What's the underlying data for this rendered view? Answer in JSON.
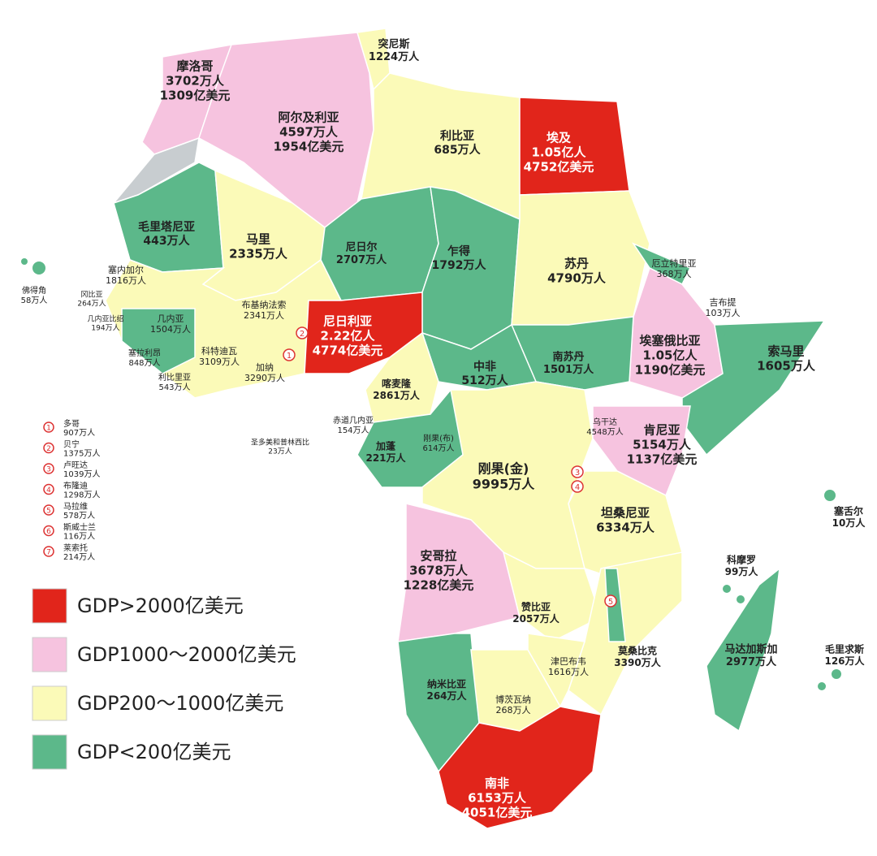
{
  "countries": [
    {
      "name": "摩洛哥",
      "population": "3702万人",
      "gdp": "1309亿美元"
    },
    {
      "name": "阿尔及利亚",
      "population": "4597万人",
      "gdp": "1954亿美元"
    },
    {
      "name": "突尼斯",
      "population": "1224万人"
    },
    {
      "name": "利比亚",
      "population": "685万人"
    },
    {
      "name": "埃及",
      "population": "1.05亿人",
      "gdp": "4752亿美元"
    },
    {
      "name": "毛里塔尼亚",
      "population": "443万人"
    },
    {
      "name": "马里",
      "population": "2335万人"
    },
    {
      "name": "尼日尔",
      "population": "2707万人"
    },
    {
      "name": "乍得",
      "population": "1792万人"
    },
    {
      "name": "苏丹",
      "population": "4790万人"
    },
    {
      "name": "厄立特里亚",
      "population": "368万人"
    },
    {
      "name": "吉布提",
      "population": "103万人"
    },
    {
      "name": "埃塞俄比亚",
      "population": "1.05亿人",
      "gdp": "1190亿美元"
    },
    {
      "name": "索马里",
      "population": "1605万人"
    },
    {
      "name": "塞内加尔",
      "population": "1816万人"
    },
    {
      "name": "佛得角",
      "population": "58万人"
    },
    {
      "name": "冈比亚",
      "population": "264万人"
    },
    {
      "name": "几内亚比绍",
      "population": "194万人"
    },
    {
      "name": "几内亚",
      "population": "1504万人"
    },
    {
      "name": "布基纳法索",
      "population": "2341万人"
    },
    {
      "name": "尼日利亚",
      "population": "2.22亿人",
      "gdp": "4774亿美元"
    },
    {
      "name": "塞拉利昂",
      "population": "848万人"
    },
    {
      "name": "科特迪瓦",
      "population": "3109万人"
    },
    {
      "name": "加纳",
      "population": "3290万人"
    },
    {
      "name": "利比里亚",
      "population": "543万人"
    },
    {
      "name": "喀麦隆",
      "population": "2861万人"
    },
    {
      "name": "中非",
      "population": "512万人"
    },
    {
      "name": "南苏丹",
      "population": "1501万人"
    },
    {
      "name": "赤道几内亚",
      "population": "154万人"
    },
    {
      "name": "圣多美和普林西比",
      "population": "23万人"
    },
    {
      "name": "加蓬",
      "population": "221万人"
    },
    {
      "name": "刚果(布)",
      "population": "614万人"
    },
    {
      "name": "乌干达",
      "population": "4548万人"
    },
    {
      "name": "肯尼亚",
      "population": "5154万人",
      "gdp": "1137亿美元"
    },
    {
      "name": "刚果(金)",
      "population": "9995万人"
    },
    {
      "name": "坦桑尼亚",
      "population": "6334万人"
    },
    {
      "name": "塞舌尔",
      "population": "10万人"
    },
    {
      "name": "科摩罗",
      "population": "99万人"
    },
    {
      "name": "安哥拉",
      "population": "3678万人",
      "gdp": "1228亿美元"
    },
    {
      "name": "赞比亚",
      "population": "2057万人"
    },
    {
      "name": "马达加斯加",
      "population": "2977万人"
    },
    {
      "name": "毛里求斯",
      "population": "126万人"
    },
    {
      "name": "莫桑比克",
      "population": "3390万人"
    },
    {
      "name": "津巴布韦",
      "population": "1616万人"
    },
    {
      "name": "纳米比亚",
      "population": "264万人"
    },
    {
      "name": "博茨瓦纳",
      "population": "268万人"
    },
    {
      "name": "南非",
      "population": "6153万人",
      "gdp": "4051亿美元"
    }
  ],
  "footnotes": [
    {
      "marker": "1",
      "name": "多哥",
      "population": "907万人"
    },
    {
      "marker": "2",
      "name": "贝宁",
      "population": "1375万人"
    },
    {
      "marker": "3",
      "name": "卢旺达",
      "population": "1039万人"
    },
    {
      "marker": "4",
      "name": "布隆迪",
      "population": "1298万人"
    },
    {
      "marker": "5",
      "name": "马拉维",
      "population": "578万人"
    },
    {
      "marker": "6",
      "name": "斯威士兰",
      "population": "116万人"
    },
    {
      "marker": "7",
      "name": "莱索托",
      "population": "214万人"
    }
  ],
  "legend": [
    {
      "label": "GDP>2000亿美元",
      "color": "#e1251b"
    },
    {
      "label": "GDP1000～2000亿美元",
      "color": "#f6c3df"
    },
    {
      "label": "GDP200～1000亿美元",
      "color": "#fbfab8"
    },
    {
      "label": "GDP<200亿美元",
      "color": "#5cb88a"
    }
  ]
}
